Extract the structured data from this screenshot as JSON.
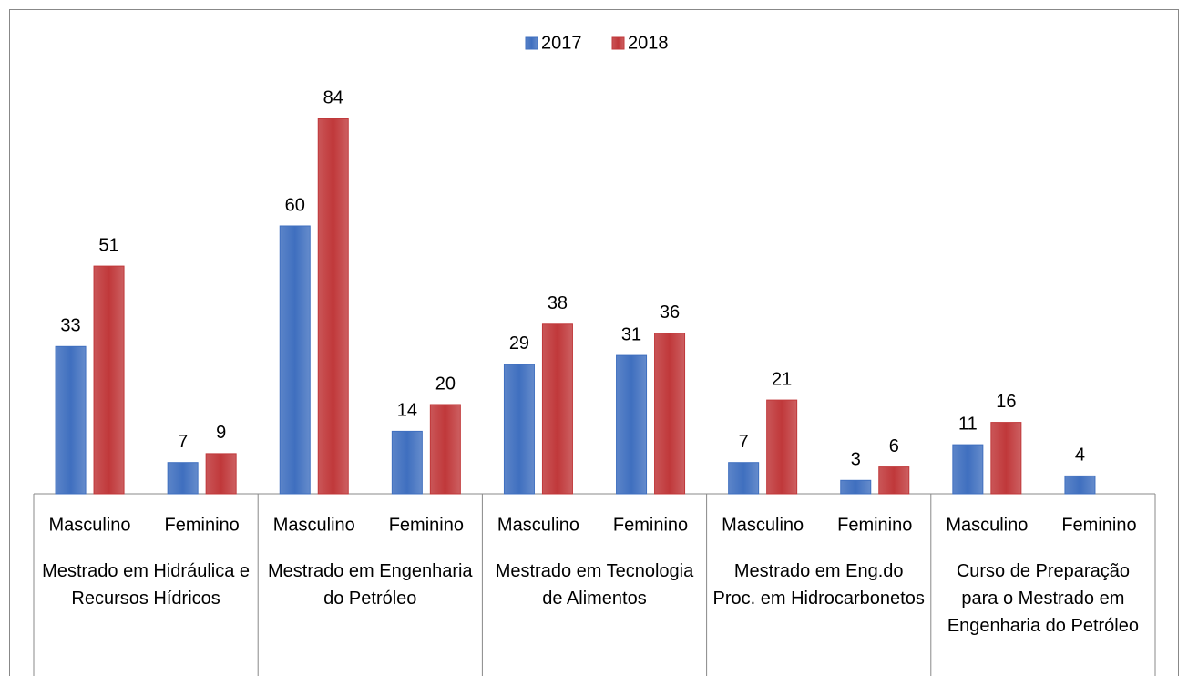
{
  "chart_data": {
    "type": "bar",
    "categories": [
      "Masculino",
      "Feminino",
      "Masculino",
      "Feminino",
      "Masculino",
      "Feminino",
      "Masculino",
      "Feminino",
      "Masculino",
      "Feminino"
    ],
    "groups": [
      "Mestrado em Hidráulica e Recursos Hídricos",
      "Mestrado em Engenharia do Petróleo",
      "Mestrado em Tecnologia de Alimentos",
      "Mestrado em Eng.do Proc. em Hidrocarbonetos",
      "Curso de Preparação para o Mestrado em Engenharia do Petróleo"
    ],
    "series": [
      {
        "name": "2017",
        "color": "#3f6fbf",
        "values": [
          33,
          7,
          60,
          14,
          29,
          31,
          7,
          3,
          11,
          4
        ]
      },
      {
        "name": "2018",
        "color": "#c0383a",
        "values": [
          51,
          9,
          84,
          20,
          38,
          36,
          21,
          6,
          16,
          null
        ]
      }
    ],
    "ylim": [
      0,
      90
    ],
    "legend": "top"
  }
}
